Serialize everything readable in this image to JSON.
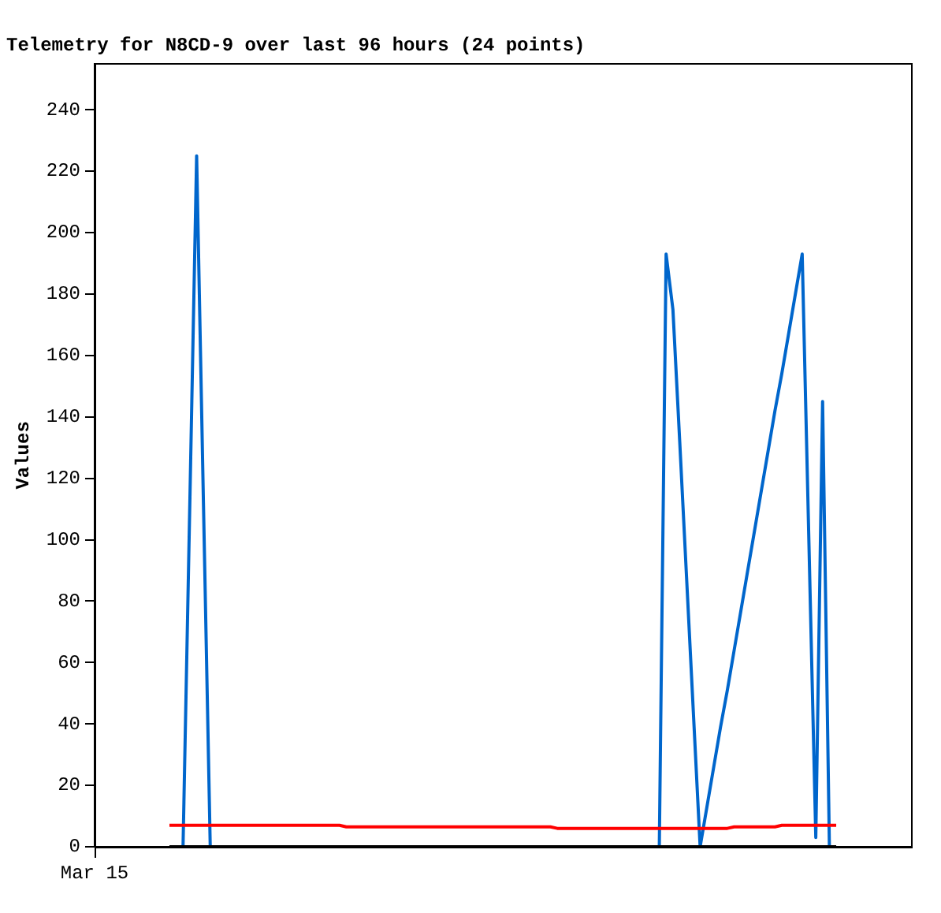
{
  "chart_data": {
    "type": "line",
    "title": "Telemetry for N8CD-9 over last 96 hours (24 points)",
    "ylabel": "Values",
    "annotations": [
      "Mar 15"
    ],
    "tick_labels": "y",
    "categories": [
      null,
      null,
      null,
      null,
      null,
      null,
      null,
      null,
      null,
      null,
      null,
      null,
      null,
      null,
      null,
      null,
      null,
      null,
      null,
      null,
      null,
      null,
      null,
      null,
      null,
      null,
      null,
      null,
      null,
      null,
      null,
      null,
      null,
      null,
      null,
      null,
      null,
      null,
      null,
      null,
      null,
      null,
      null,
      null,
      null,
      null,
      null,
      null,
      null,
      null,
      null,
      null,
      null,
      null,
      null,
      null,
      null,
      null,
      null,
      null,
      null,
      null,
      null,
      null,
      null,
      null,
      null,
      null,
      null,
      null,
      null,
      null,
      null,
      null,
      null,
      null,
      null,
      null,
      null,
      null,
      null,
      null,
      null,
      null,
      null,
      null,
      null,
      null,
      null,
      null,
      null,
      null,
      null,
      null,
      null,
      null,
      null,
      null,
      null,
      null,
      null,
      null,
      null,
      null,
      null,
      null,
      null,
      null,
      null,
      null,
      null,
      null,
      null,
      null,
      null,
      null,
      null,
      null,
      null,
      null,
      null
    ],
    "ylim": [
      0,
      255
    ],
    "yticks": [
      0,
      20,
      40,
      60,
      80,
      100,
      120,
      140,
      160,
      180,
      200,
      220,
      240
    ],
    "grid": false,
    "legend": false,
    "marker": "none",
    "line_style": "solid",
    "series": [
      {
        "color": "#000000",
        "values": [
          null,
          null,
          null,
          null,
          null,
          null,
          null,
          null,
          null,
          null,
          null,
          0,
          0,
          0,
          0,
          0,
          0,
          0,
          0,
          0,
          0,
          0,
          0,
          0,
          0,
          0,
          0,
          0,
          0,
          0,
          0,
          0,
          0,
          0,
          0,
          0,
          0,
          0,
          0,
          0,
          0,
          0,
          0,
          0,
          0,
          0,
          0,
          0,
          0,
          0,
          0,
          0,
          0,
          0,
          0,
          0,
          0,
          0,
          0,
          0,
          0,
          0,
          0,
          0,
          0,
          0,
          0,
          0,
          0,
          0,
          0,
          0,
          0,
          0,
          0,
          0,
          0,
          0,
          0,
          0,
          0,
          0,
          0,
          0,
          0,
          0,
          0,
          0,
          0,
          0,
          0,
          0,
          0,
          0,
          0,
          0,
          0,
          0,
          0,
          0,
          0,
          0,
          0,
          0,
          0,
          0,
          0,
          0,
          0,
          0,
          null,
          null,
          null,
          null,
          null,
          null,
          null,
          null,
          null,
          null,
          null
        ]
      },
      {
        "color": "#ff0000",
        "values": [
          null,
          null,
          null,
          null,
          null,
          null,
          null,
          null,
          null,
          null,
          null,
          7,
          7,
          7,
          7,
          7,
          7,
          7,
          7,
          7,
          7,
          7,
          7,
          7,
          7,
          7,
          7,
          7,
          7,
          7,
          7,
          7,
          7,
          7,
          7,
          7,
          7,
          6.5,
          6.5,
          6.5,
          6.5,
          6.5,
          6.5,
          6.5,
          6.5,
          6.5,
          6.5,
          6.5,
          6.5,
          6.5,
          6.5,
          6.5,
          6.5,
          6.5,
          6.5,
          6.5,
          6.5,
          6.5,
          6.5,
          6.5,
          6.5,
          6.5,
          6.5,
          6.5,
          6.5,
          6.5,
          6.5,
          6.5,
          6,
          6,
          6,
          6,
          6,
          6,
          6,
          6,
          6,
          6,
          6,
          6,
          6,
          6,
          6,
          6,
          6,
          6,
          6,
          6,
          6,
          6,
          6,
          6,
          6,
          6,
          6.5,
          6.5,
          6.5,
          6.5,
          6.5,
          6.5,
          6.5,
          7,
          7,
          7,
          7,
          7,
          7,
          7,
          7,
          7,
          null,
          null,
          null,
          null,
          null,
          null,
          null,
          null,
          null,
          null,
          null
        ]
      },
      {
        "color": "#0066cc",
        "values": [
          null,
          null,
          null,
          null,
          null,
          null,
          null,
          null,
          null,
          null,
          null,
          null,
          0,
          0,
          112,
          225,
          112,
          0,
          0,
          null,
          null,
          null,
          null,
          null,
          null,
          null,
          null,
          null,
          null,
          null,
          null,
          null,
          null,
          null,
          null,
          null,
          null,
          null,
          null,
          null,
          null,
          null,
          null,
          null,
          null,
          null,
          null,
          null,
          null,
          null,
          null,
          null,
          null,
          null,
          null,
          null,
          null,
          null,
          null,
          null,
          null,
          null,
          null,
          null,
          null,
          null,
          null,
          null,
          null,
          null,
          null,
          null,
          null,
          null,
          null,
          null,
          null,
          null,
          null,
          null,
          null,
          null,
          0,
          0,
          193,
          175,
          132,
          88,
          44,
          0,
          13,
          26,
          39,
          51,
          64,
          77,
          90,
          103,
          116,
          129,
          142,
          154,
          167,
          180,
          193,
          98,
          3,
          145,
          0,
          0,
          null,
          null,
          null,
          null,
          null,
          null,
          null,
          null,
          null,
          null,
          null
        ]
      }
    ]
  }
}
